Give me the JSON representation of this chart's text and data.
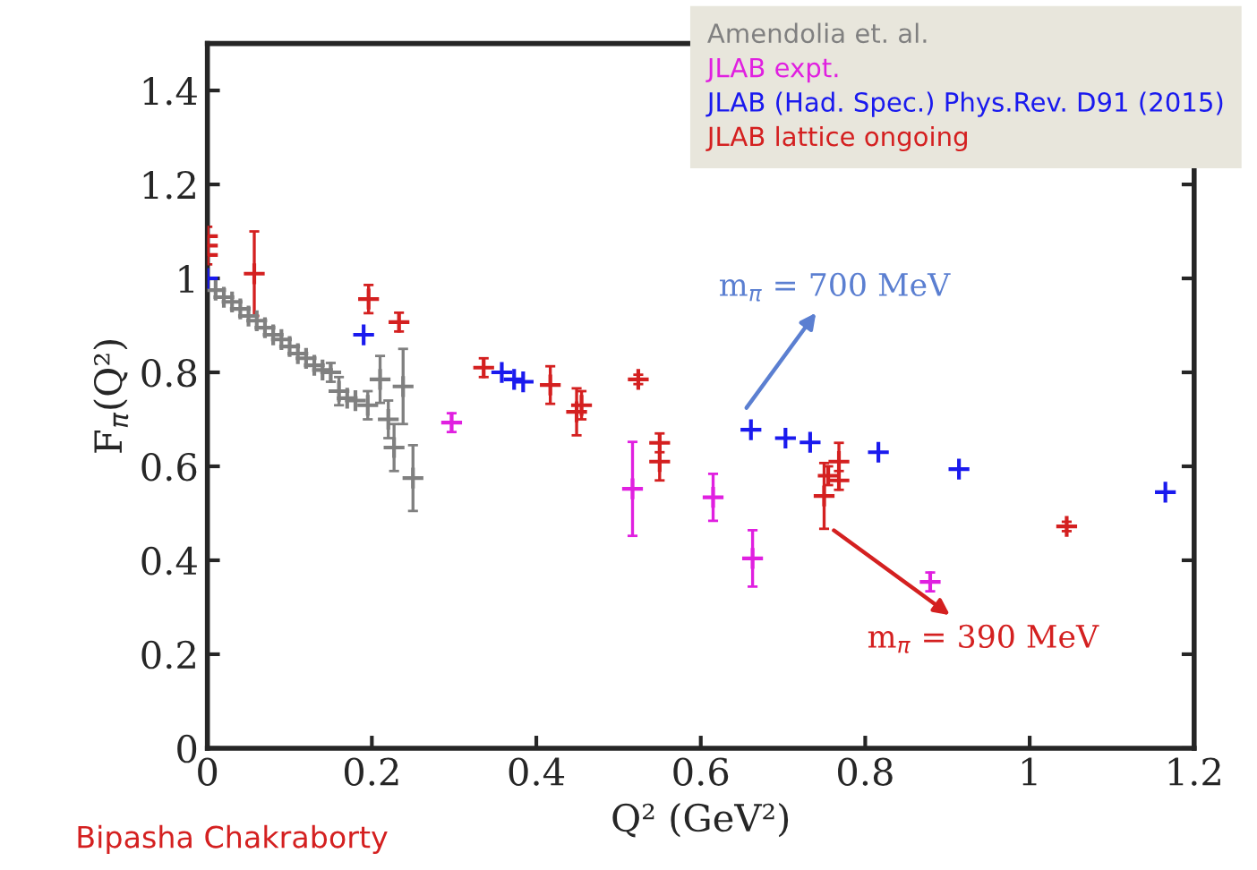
{
  "chart_data": {
    "type": "scatter",
    "xlabel": "Q² (GeV²)",
    "ylabel": "F$_{π}$(Q²)",
    "xlim": [
      0,
      1.2
    ],
    "ylim": [
      0,
      1.5
    ],
    "xticks": [
      0,
      0.2,
      0.4,
      0.6,
      0.8,
      1,
      1.2
    ],
    "yticks": [
      0,
      0.2,
      0.4,
      0.6,
      0.8,
      1,
      1.2,
      1.4
    ],
    "grid": false,
    "legend": "top right",
    "series": [
      {
        "name": "Amendolia et. al.",
        "color": "#808080",
        "marker": "cross",
        "x": [
          0.01,
          0.02,
          0.03,
          0.04,
          0.05,
          0.06,
          0.07,
          0.08,
          0.09,
          0.1,
          0.11,
          0.12,
          0.13,
          0.14,
          0.15,
          0.16,
          0.17,
          0.18,
          0.195,
          0.21,
          0.22,
          0.227,
          0.238,
          0.25
        ],
        "values": [
          0.975,
          0.96,
          0.95,
          0.935,
          0.92,
          0.91,
          0.895,
          0.88,
          0.87,
          0.855,
          0.84,
          0.83,
          0.815,
          0.805,
          0.8,
          0.76,
          0.745,
          0.74,
          0.73,
          0.785,
          0.7,
          0.64,
          0.77,
          0.575
        ],
        "errors": [
          null,
          null,
          null,
          null,
          null,
          null,
          null,
          null,
          null,
          null,
          null,
          null,
          null,
          null,
          0.02,
          0.03,
          null,
          null,
          0.03,
          0.05,
          0.04,
          0.05,
          0.08,
          0.07
        ]
      },
      {
        "name": "JLAB expt.",
        "color": "#e020e0",
        "marker": "cross",
        "x": [
          0.297,
          0.517,
          0.615,
          0.663,
          0.879
        ],
        "values": [
          0.693,
          0.552,
          0.534,
          0.404,
          0.354
        ],
        "errors": [
          0.02,
          0.1,
          0.05,
          0.06,
          0.02
        ]
      },
      {
        "name": "JLAB (Had. Spec.) Phys.Rev. D91 (2015)",
        "color": "#1a1aee",
        "marker": "cross",
        "x": [
          0,
          0.19,
          0.358,
          0.373,
          0.384,
          0.661,
          0.703,
          0.733,
          0.816,
          0.914,
          1.165
        ],
        "values": [
          1.0,
          0.88,
          0.8,
          0.785,
          0.78,
          0.678,
          0.66,
          0.651,
          0.63,
          0.594,
          0.545
        ]
      },
      {
        "name": "JLAB lattice ongoing",
        "color": "#d42020",
        "marker": "cross",
        "x": [
          0,
          0,
          0,
          0.057,
          0.196,
          0.227,
          0.233,
          0.236,
          0.336,
          0.417,
          0.449,
          0.455,
          0.524,
          0.55,
          0.55,
          0.75,
          0.755,
          0.768,
          0.768,
          1.045
        ],
        "values": [
          1.09,
          1.07,
          1.05,
          1.01,
          0.956,
          null,
          0.907,
          null,
          0.81,
          0.773,
          0.716,
          0.73,
          0.785,
          0.65,
          0.61,
          0.537,
          0.58,
          0.61,
          0.57,
          0.472
        ],
        "errors": [
          0.02,
          0.02,
          0.02,
          0.09,
          0.03,
          null,
          0.02,
          null,
          0.02,
          0.04,
          0.05,
          0.03,
          0.01,
          0.02,
          0.04,
          0.07,
          0.02,
          0.04,
          0.02,
          0.01
        ]
      }
    ],
    "annotations": [
      {
        "text": "m$_{π}$ = 700 MeV",
        "x": 0.652,
        "y": 0.716
      },
      {
        "text": "m$_{π}$ = 390 MeV",
        "x": 0.757,
        "y": 0.47
      },
      "Bipasha Chakraborty"
    ]
  }
}
